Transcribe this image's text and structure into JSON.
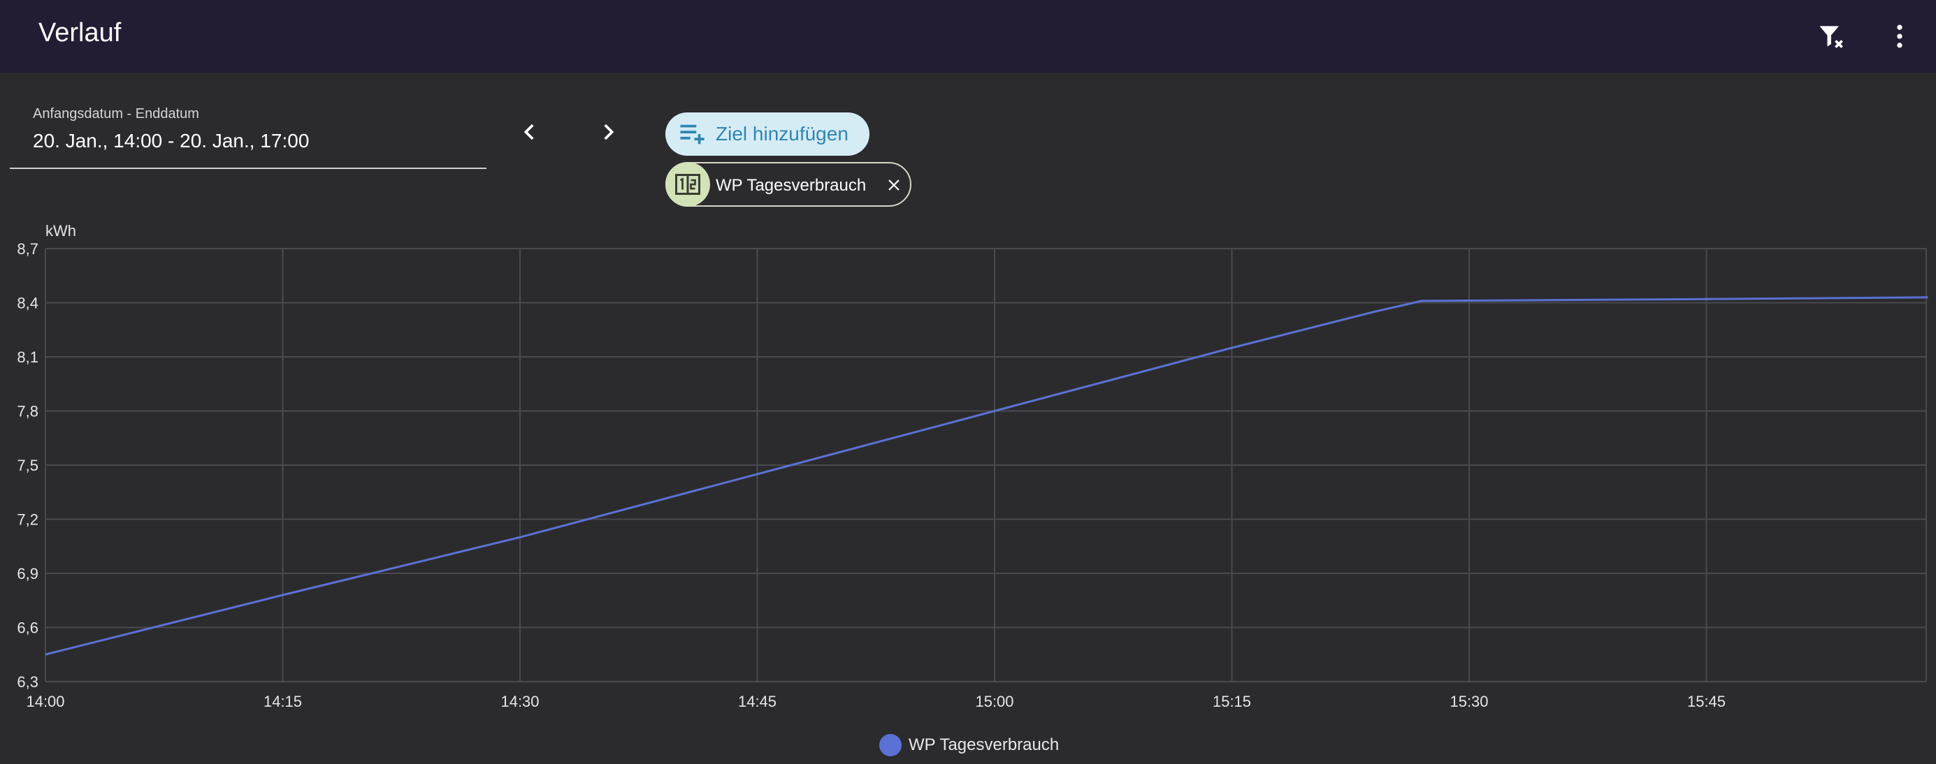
{
  "header": {
    "title": "Verlauf"
  },
  "date_range": {
    "label": "Anfangsdatum - Enddatum",
    "value": "20. Jan., 14:00 - 20. Jan., 17:00"
  },
  "add_target": {
    "label": "Ziel hinzufügen"
  },
  "selected_target": {
    "label": "WP Tagesverbrauch"
  },
  "colors": {
    "header_bg": "#241c33",
    "page_bg": "#2b2b2e",
    "series": "#5b72d4",
    "add_target_bg": "#d6ecf5",
    "add_target_text": "#2f86b3",
    "chip_avatar": "#d2e3b8"
  },
  "chart_data": {
    "type": "line",
    "ylabel": "kWh",
    "ylim": [
      6.3,
      8.7
    ],
    "y_ticks": [
      "8,7",
      "8,4",
      "8,1",
      "7,8",
      "7,5",
      "7,2",
      "6,9",
      "6,6",
      "6,3"
    ],
    "x_ticks": [
      "14:00",
      "14:15",
      "14:30",
      "14:45",
      "15:00",
      "15:15",
      "15:30",
      "15:45"
    ],
    "xlim": [
      "14:00",
      "15:59"
    ],
    "grid": true,
    "legend_position": "bottom-center",
    "series": [
      {
        "name": "WP Tagesverbrauch",
        "color": "#5b72d4",
        "points": [
          [
            "14:00",
            6.45
          ],
          [
            "14:15",
            6.78
          ],
          [
            "14:30",
            7.1
          ],
          [
            "14:45",
            7.45
          ],
          [
            "15:00",
            7.8
          ],
          [
            "15:15",
            8.15
          ],
          [
            "15:24",
            8.35
          ],
          [
            "15:27",
            8.41
          ],
          [
            "15:45",
            8.42
          ],
          [
            "15:59",
            8.43
          ]
        ]
      }
    ]
  }
}
